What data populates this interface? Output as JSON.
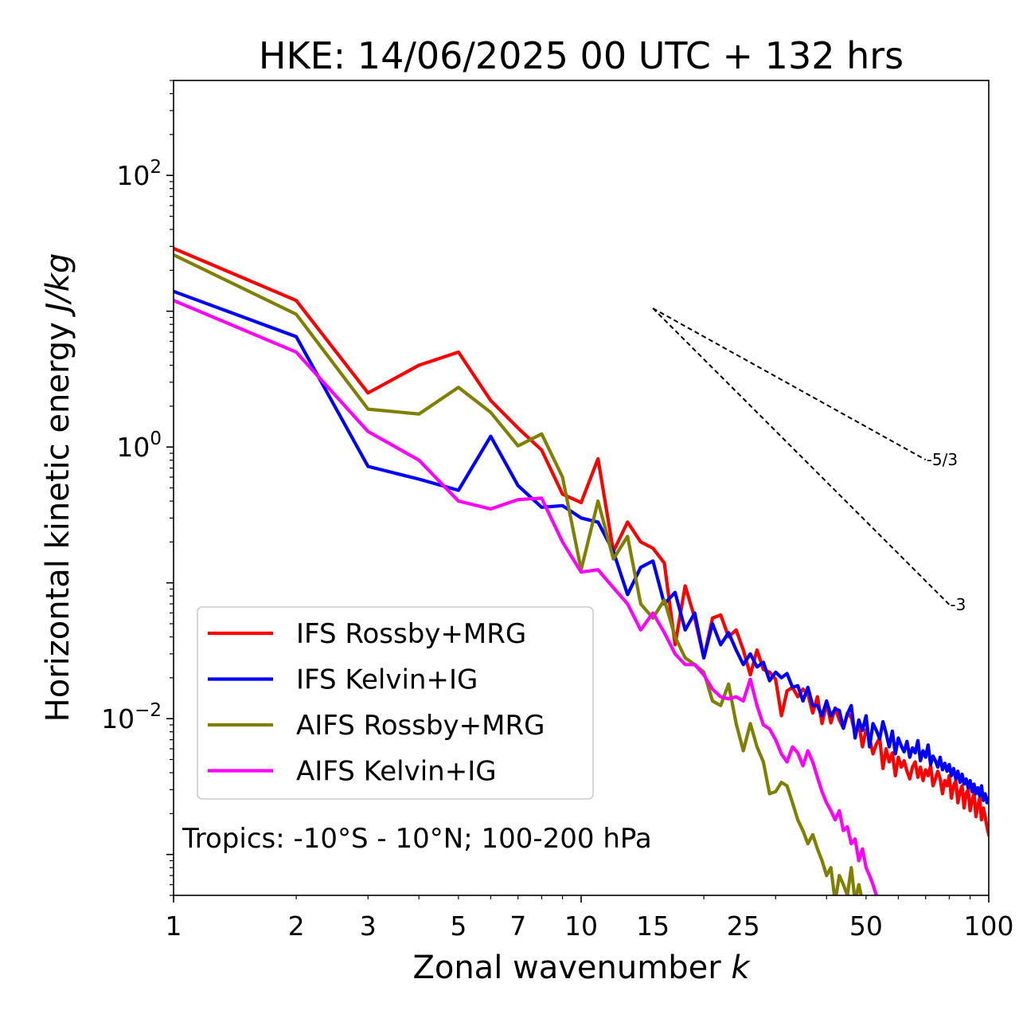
{
  "chart_data": {
    "type": "line",
    "title": "HKE: 14/06/2025 00 UTC + 132 hrs",
    "xlabel": "Zonal wavenumber",
    "xlabel_symbol": "k",
    "ylabel": "Horizontal kinetic energy",
    "ylabel_units": "J/kg",
    "xscale": "log",
    "yscale": "log",
    "xlim": [
      1,
      100
    ],
    "ylim": [
      0.0005,
      500
    ],
    "x_ticks": [
      1,
      2,
      3,
      5,
      7,
      10,
      15,
      25,
      50,
      100
    ],
    "x_tick_labels": [
      "1",
      "2",
      "3",
      "5",
      "7",
      "10",
      "15",
      "25",
      "50",
      "100"
    ],
    "y_ticks": [
      {
        "value": 0.01,
        "base": "10",
        "exp": "−2"
      },
      {
        "value": 1,
        "base": "10",
        "exp": "0"
      },
      {
        "value": 100,
        "base": "10",
        "exp": "2"
      }
    ],
    "annotation": "Tropics: -10°S - 10°N; 100-200 hPa",
    "legend_position": "lower-left",
    "grid": false,
    "reference_slopes": [
      {
        "label": "-5/3",
        "slope": -1.6667,
        "x": [
          15,
          70
        ],
        "y0": 10.5
      },
      {
        "label": "-3",
        "slope": -3,
        "x": [
          15,
          80
        ],
        "y0": 10.5
      }
    ],
    "series": [
      {
        "name": "IFS Rossby+MRG",
        "color": "#ff0000",
        "x": [
          1,
          2,
          3,
          4,
          5,
          6,
          7,
          8,
          9,
          10,
          11,
          12,
          13,
          14,
          15,
          16,
          17,
          18,
          19,
          20,
          21,
          22,
          23,
          24,
          25,
          26,
          27,
          28,
          29,
          30,
          31,
          32,
          33,
          34,
          35,
          36,
          37,
          38,
          39,
          40,
          41,
          42,
          43,
          44,
          45,
          46,
          47,
          48,
          49,
          50,
          51,
          52,
          53,
          54,
          55,
          56,
          57,
          58,
          59,
          60,
          61,
          62,
          63,
          64,
          65,
          66,
          67,
          68,
          69,
          70,
          71,
          72,
          73,
          74,
          75,
          76,
          77,
          78,
          79,
          80,
          81,
          82,
          83,
          84,
          85,
          86,
          87,
          88,
          89,
          90,
          91,
          92,
          93,
          94,
          95,
          96,
          97,
          98,
          99,
          100
        ],
        "y": [
          29,
          12,
          2.5,
          4.0,
          5.0,
          2.2,
          1.38,
          0.95,
          0.45,
          0.39,
          0.82,
          0.17,
          0.28,
          0.2,
          0.18,
          0.14,
          0.035,
          0.095,
          0.055,
          0.028,
          0.055,
          0.058,
          0.04,
          0.045,
          0.032,
          0.021,
          0.032,
          0.023,
          0.022,
          0.0195,
          0.0105,
          0.016,
          0.017,
          0.0145,
          0.0165,
          0.0152,
          0.011,
          0.0145,
          0.0092,
          0.013,
          0.0093,
          0.012,
          0.0098,
          0.0085,
          0.011,
          0.0102,
          0.0078,
          0.0092,
          0.0062,
          0.0083,
          0.0072,
          0.0055,
          0.0065,
          0.0072,
          0.0043,
          0.006,
          0.0048,
          0.0056,
          0.0038,
          0.0052,
          0.0044,
          0.0049,
          0.0041,
          0.0036,
          0.0044,
          0.0048,
          0.0037,
          0.0044,
          0.0035,
          0.0042,
          0.0038,
          0.0045,
          0.0032,
          0.0036,
          0.0041,
          0.0036,
          0.0028,
          0.0035,
          0.0032,
          0.0038,
          0.0026,
          0.0032,
          0.0035,
          0.0024,
          0.0029,
          0.0032,
          0.0022,
          0.0028,
          0.003,
          0.0021,
          0.0025,
          0.0028,
          0.0019,
          0.0023,
          0.0026,
          0.0018,
          0.0022,
          0.0019,
          0.0016,
          0.0014
        ]
      },
      {
        "name": "IFS Kelvin+IG",
        "color": "#0000ff",
        "x": [
          1,
          2,
          3,
          4,
          5,
          6,
          7,
          8,
          9,
          10,
          11,
          12,
          13,
          14,
          15,
          16,
          17,
          18,
          19,
          20,
          21,
          22,
          23,
          24,
          25,
          26,
          27,
          28,
          29,
          30,
          31,
          32,
          33,
          34,
          35,
          36,
          37,
          38,
          39,
          40,
          41,
          42,
          43,
          44,
          45,
          46,
          47,
          48,
          49,
          50,
          51,
          52,
          53,
          54,
          55,
          56,
          57,
          58,
          59,
          60,
          61,
          62,
          63,
          64,
          65,
          66,
          67,
          68,
          69,
          70,
          71,
          72,
          73,
          74,
          75,
          76,
          77,
          78,
          79,
          80,
          81,
          82,
          83,
          84,
          85,
          86,
          87,
          88,
          89,
          90,
          91,
          92,
          93,
          94,
          95,
          96,
          97,
          98,
          99,
          100
        ],
        "y": [
          14,
          6.5,
          0.72,
          0.58,
          0.48,
          1.2,
          0.52,
          0.36,
          0.37,
          0.3,
          0.28,
          0.17,
          0.082,
          0.13,
          0.145,
          0.07,
          0.085,
          0.045,
          0.06,
          0.028,
          0.05,
          0.035,
          0.043,
          0.032,
          0.025,
          0.03,
          0.024,
          0.026,
          0.019,
          0.022,
          0.02,
          0.0215,
          0.017,
          0.0175,
          0.0135,
          0.017,
          0.0125,
          0.0125,
          0.0105,
          0.0135,
          0.0105,
          0.0118,
          0.0115,
          0.0085,
          0.0108,
          0.0125,
          0.0072,
          0.0098,
          0.0082,
          0.0105,
          0.0062,
          0.0092,
          0.0082,
          0.0071,
          0.0095,
          0.0078,
          0.0062,
          0.0081,
          0.0055,
          0.0072,
          0.0063,
          0.0057,
          0.0068,
          0.0052,
          0.0061,
          0.0056,
          0.0069,
          0.0049,
          0.0058,
          0.0052,
          0.0064,
          0.0046,
          0.0053,
          0.0049,
          0.0044,
          0.0052,
          0.0042,
          0.0047,
          0.0041,
          0.0046,
          0.0038,
          0.0043,
          0.0036,
          0.0041,
          0.0034,
          0.0039,
          0.0033,
          0.0036,
          0.0031,
          0.0035,
          0.0029,
          0.0033,
          0.0028,
          0.0031,
          0.0027,
          0.0032,
          0.0025,
          0.0028,
          0.0024,
          0.0026
        ]
      },
      {
        "name": "AIFS Rossby+MRG",
        "color": "#808000",
        "x": [
          1,
          2,
          3,
          4,
          5,
          6,
          7,
          8,
          9,
          10,
          11,
          12,
          13,
          14,
          15,
          16,
          17,
          18,
          19,
          20,
          21,
          22,
          23,
          24,
          25,
          26,
          27,
          28,
          29,
          30,
          31,
          32,
          33,
          34,
          35,
          36,
          37,
          38,
          39,
          40,
          41,
          42,
          43,
          44,
          45,
          46,
          47,
          48,
          49,
          50
        ],
        "y": [
          26,
          9.5,
          1.9,
          1.75,
          2.75,
          1.8,
          1.02,
          1.25,
          0.6,
          0.125,
          0.4,
          0.15,
          0.22,
          0.07,
          0.055,
          0.075,
          0.04,
          0.028,
          0.025,
          0.022,
          0.0135,
          0.0125,
          0.018,
          0.0092,
          0.0058,
          0.0092,
          0.0062,
          0.0048,
          0.0028,
          0.0029,
          0.0034,
          0.0032,
          0.0024,
          0.0018,
          0.0015,
          0.0012,
          0.0014,
          0.0011,
          0.0009,
          0.0007,
          0.0008,
          0.00045,
          0.0007,
          0.0006,
          0.0005,
          0.0008,
          0.00045,
          0.0006,
          0.00045,
          0.0003
        ]
      },
      {
        "name": "AIFS Kelvin+IG",
        "color": "#ff00ff",
        "x": [
          1,
          2,
          3,
          4,
          5,
          6,
          7,
          8,
          9,
          10,
          11,
          12,
          13,
          14,
          15,
          16,
          17,
          18,
          19,
          20,
          21,
          22,
          23,
          24,
          25,
          26,
          27,
          28,
          29,
          30,
          31,
          32,
          33,
          34,
          35,
          36,
          37,
          38,
          39,
          40,
          41,
          42,
          43,
          44,
          45,
          46,
          47,
          48,
          49,
          50,
          51,
          52,
          53
        ],
        "y": [
          12,
          5.0,
          1.3,
          0.8,
          0.4,
          0.35,
          0.41,
          0.42,
          0.2,
          0.12,
          0.125,
          0.092,
          0.07,
          0.045,
          0.06,
          0.043,
          0.03,
          0.025,
          0.025,
          0.021,
          0.0165,
          0.0145,
          0.014,
          0.0145,
          0.0135,
          0.0195,
          0.0125,
          0.009,
          0.0084,
          0.007,
          0.0055,
          0.0048,
          0.0062,
          0.0056,
          0.0045,
          0.0058,
          0.0048,
          0.0037,
          0.0029,
          0.0024,
          0.0021,
          0.0018,
          0.0021,
          0.0015,
          0.0016,
          0.0012,
          0.0013,
          0.0009,
          0.0011,
          0.0008,
          0.0007,
          0.0006,
          0.0005
        ]
      }
    ]
  }
}
